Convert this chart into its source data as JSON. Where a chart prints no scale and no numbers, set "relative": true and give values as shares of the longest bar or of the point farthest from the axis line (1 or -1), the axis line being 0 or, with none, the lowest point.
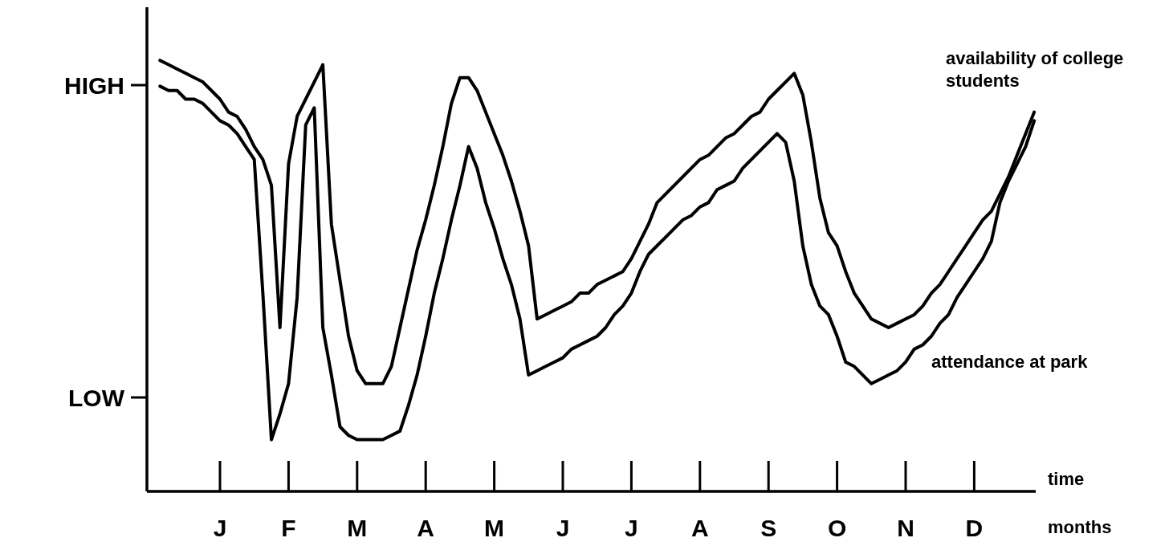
{
  "chart_data": {
    "type": "line",
    "relative": true,
    "xlabel": "time",
    "grid": false,
    "annotations": [
      "HIGH",
      "LOW",
      "months"
    ],
    "categories": [
      null,
      null,
      null,
      null,
      null,
      null,
      null,
      null,
      "J",
      null,
      null,
      null,
      null,
      null,
      null,
      null,
      "F",
      null,
      null,
      null,
      null,
      null,
      null,
      null,
      "M",
      null,
      null,
      null,
      null,
      null,
      null,
      null,
      "A",
      null,
      null,
      null,
      null,
      null,
      null,
      null,
      "M",
      null,
      null,
      null,
      null,
      null,
      null,
      null,
      "J",
      null,
      null,
      null,
      null,
      null,
      null,
      null,
      "J",
      null,
      null,
      null,
      null,
      null,
      null,
      null,
      "A",
      null,
      null,
      null,
      null,
      null,
      null,
      null,
      "S",
      null,
      null,
      null,
      null,
      null,
      null,
      null,
      "O",
      null,
      null,
      null,
      null,
      null,
      null,
      null,
      "N",
      null,
      null,
      null,
      null,
      null,
      null,
      null,
      "D",
      null,
      null,
      null,
      null,
      null,
      null,
      null
    ],
    "series": [
      {
        "name": "availability of college students",
        "color": "#000000",
        "values": [
          null,
          1.0,
          0.99,
          0.98,
          0.97,
          0.96,
          0.95,
          0.93,
          0.91,
          0.88,
          0.87,
          0.84,
          0.8,
          0.77,
          0.71,
          0.38,
          0.76,
          0.87,
          0.91,
          0.95,
          0.99,
          0.62,
          0.49,
          0.36,
          0.28,
          0.25,
          0.25,
          0.25,
          0.29,
          0.38,
          0.47,
          0.56,
          0.63,
          0.71,
          0.8,
          0.9,
          0.96,
          0.96,
          0.93,
          0.88,
          0.83,
          0.78,
          0.72,
          0.65,
          0.57,
          0.4,
          0.41,
          0.42,
          0.43,
          0.44,
          0.46,
          0.46,
          0.48,
          0.49,
          0.5,
          0.51,
          0.54,
          0.58,
          0.62,
          0.67,
          0.69,
          0.71,
          0.73,
          0.75,
          0.77,
          0.78,
          0.8,
          0.82,
          0.83,
          0.85,
          0.87,
          0.88,
          0.91,
          0.93,
          0.95,
          0.97,
          0.92,
          0.81,
          0.68,
          0.6,
          0.57,
          0.51,
          0.46,
          0.43,
          0.4,
          0.39,
          0.38,
          0.39,
          0.4,
          0.41,
          0.43,
          0.46,
          0.48,
          0.51,
          0.54,
          0.57,
          0.6,
          0.63,
          0.65,
          0.69,
          0.73,
          0.78,
          0.83,
          0.88
        ]
      },
      {
        "name": "attendance at park",
        "color": "#000000",
        "values": [
          null,
          0.94,
          0.93,
          0.93,
          0.91,
          0.91,
          0.9,
          0.88,
          0.86,
          0.85,
          0.83,
          0.8,
          0.77,
          0.46,
          0.12,
          0.18,
          0.25,
          0.45,
          0.85,
          0.89,
          0.38,
          0.27,
          0.15,
          0.13,
          0.12,
          0.12,
          0.12,
          0.12,
          0.13,
          0.14,
          0.2,
          0.27,
          0.36,
          0.46,
          0.54,
          0.63,
          0.71,
          0.8,
          0.75,
          0.67,
          0.61,
          0.54,
          0.48,
          0.4,
          0.27,
          0.28,
          0.29,
          0.3,
          0.31,
          0.33,
          0.34,
          0.35,
          0.36,
          0.38,
          0.41,
          0.43,
          0.46,
          0.51,
          0.55,
          0.57,
          0.59,
          0.61,
          0.63,
          0.64,
          0.66,
          0.67,
          0.7,
          0.71,
          0.72,
          0.75,
          0.77,
          0.79,
          0.81,
          0.83,
          0.81,
          0.72,
          0.57,
          0.48,
          0.43,
          0.41,
          0.36,
          0.3,
          0.29,
          0.27,
          0.25,
          0.26,
          0.27,
          0.28,
          0.3,
          0.33,
          0.34,
          0.36,
          0.39,
          0.41,
          0.45,
          0.48,
          0.51,
          0.54,
          0.58,
          0.67,
          0.72,
          0.76,
          0.8,
          0.86
        ]
      }
    ]
  }
}
